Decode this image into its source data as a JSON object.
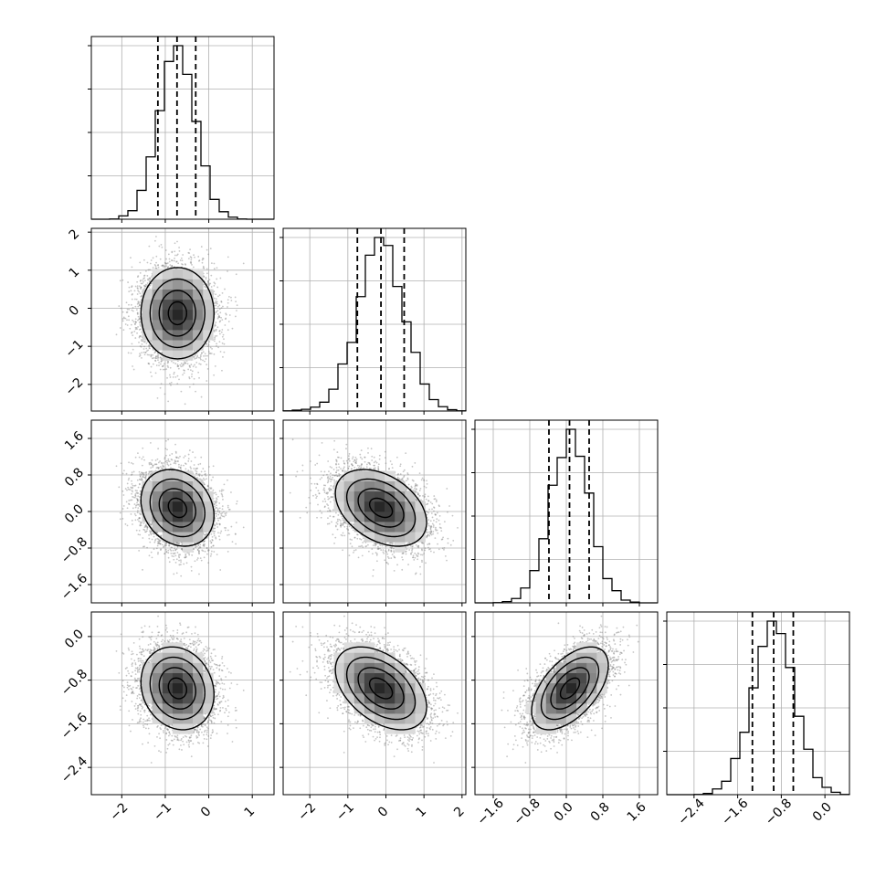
{
  "chart_data": {
    "type": "scatter",
    "title": "",
    "description_of_kind": "corner",
    "grid": true,
    "colors": {
      "contour": "#000000",
      "hist": "#000000",
      "points": "#808080",
      "grid": "#b0b0b0",
      "quantile_line": "#000000"
    },
    "quantiles": [
      0.16,
      0.5,
      0.84
    ],
    "variables": [
      {
        "range": [
          -2.7,
          1.5
        ],
        "ticks": [
          -2,
          -1,
          0,
          1
        ],
        "tick_labels": [
          "−2",
          "−1",
          "0",
          "1"
        ],
        "mean": -0.72,
        "std": 0.42,
        "quantile_values": [
          -1.17,
          -0.73,
          -0.3
        ]
      },
      {
        "range": [
          -2.7,
          2.1
        ],
        "ticks": [
          -2,
          -1,
          0,
          1,
          2
        ],
        "tick_labels": [
          "−2",
          "−1",
          "0",
          "1",
          "2"
        ],
        "mean": -0.13,
        "std": 0.6,
        "quantile_values": [
          -0.75,
          -0.13,
          0.48
        ]
      },
      {
        "range": [
          -2.0,
          2.0
        ],
        "ticks": [
          -1.6,
          -0.8,
          0.0,
          0.8,
          1.6
        ],
        "tick_labels": [
          "−1.6",
          "−0.8",
          "0.0",
          "0.8",
          "1.6"
        ],
        "mean": 0.08,
        "std": 0.42,
        "quantile_values": [
          -0.38,
          0.07,
          0.5
        ]
      },
      {
        "range": [
          -2.9,
          0.45
        ],
        "ticks": [
          -2.4,
          -1.6,
          -0.8,
          0.0
        ],
        "tick_labels": [
          "−2.4",
          "−1.6",
          "−0.8",
          "0.0"
        ],
        "mean": -0.95,
        "std": 0.38,
        "quantile_values": [
          -1.33,
          -0.94,
          -0.58
        ]
      }
    ],
    "correlations": [
      {
        "pair": [
          0,
          1
        ],
        "rho": 0.0
      },
      {
        "pair": [
          0,
          2
        ],
        "rho": -0.2
      },
      {
        "pair": [
          1,
          2
        ],
        "rho": -0.38
      },
      {
        "pair": [
          0,
          3
        ],
        "rho": -0.15
      },
      {
        "pair": [
          1,
          3
        ],
        "rho": -0.45
      },
      {
        "pair": [
          2,
          3
        ],
        "rho": 0.55
      }
    ]
  }
}
